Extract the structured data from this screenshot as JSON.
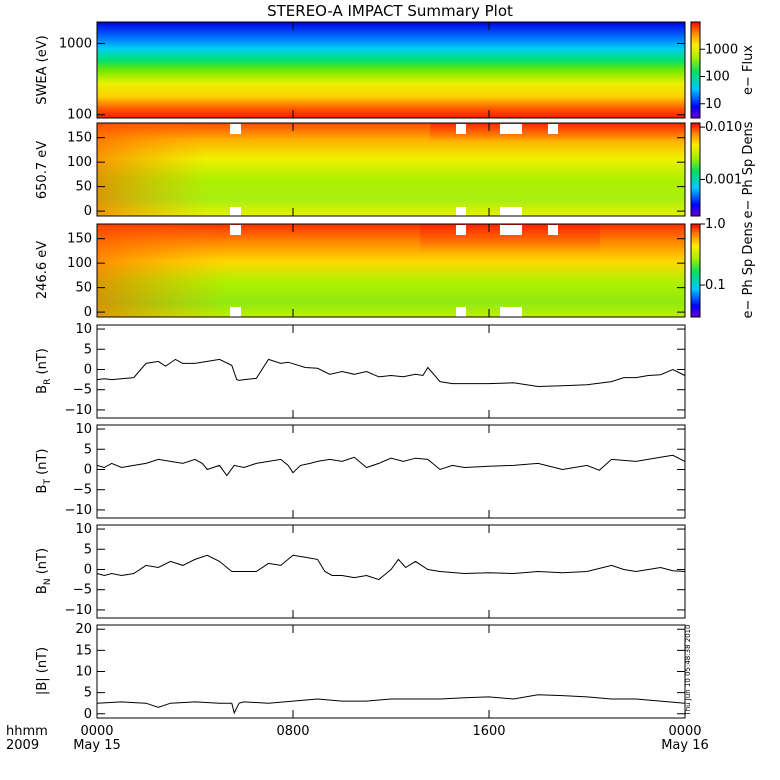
{
  "title": "STEREO-A IMPACT Summary Plot",
  "timestamp": "Thu Jun 10 05:48:38 2010",
  "footer": {
    "left_top": "hhmm",
    "left_bottom": "2009"
  },
  "xaxis": {
    "ticks": [
      {
        "hour": 0,
        "top": "0000",
        "bottom": "May 15"
      },
      {
        "hour": 8,
        "top": "0800",
        "bottom": ""
      },
      {
        "hour": 16,
        "top": "1600",
        "bottom": ""
      },
      {
        "hour": 24,
        "top": "0000",
        "bottom": "May 16"
      }
    ],
    "range": [
      0,
      24
    ]
  },
  "colors": {
    "trace": "#000000",
    "axis": "#000000",
    "background": "#ffffff"
  },
  "chart_data": [
    {
      "id": "swea",
      "type": "heatmap",
      "ylabel": "SWEA (eV)",
      "yscale": "log",
      "ylim": [
        90,
        2000
      ],
      "yticks": [
        100,
        1000
      ],
      "yticklabels": [
        "100",
        "1000"
      ],
      "colorbar": {
        "label": "e− Flux",
        "scale": "log",
        "range": [
          3,
          10000
        ],
        "ticks": [
          10,
          100,
          1000
        ],
        "ticklabels": [
          "10",
          "100",
          "1000"
        ]
      },
      "description_values": {
        "low_energy_flux": "high (red)",
        "high_energy_flux": "low (blue)"
      }
    },
    {
      "id": "pad650",
      "type": "heatmap",
      "ylabel": "650.7 eV",
      "ylim": [
        -10,
        180
      ],
      "yticks": [
        0,
        50,
        100,
        150
      ],
      "yticklabels": [
        "0",
        "50",
        "100",
        "150"
      ],
      "colorbar": {
        "label": "e− Ph Sp Dens",
        "scale": "log",
        "range": [
          0.0002,
          0.012
        ],
        "ticks": [
          0.001,
          0.01
        ],
        "ticklabels": [
          "0.001",
          "0.010"
        ]
      }
    },
    {
      "id": "pad246",
      "type": "heatmap",
      "ylabel": "246.6 eV",
      "ylim": [
        -10,
        180
      ],
      "yticks": [
        0,
        50,
        100,
        150
      ],
      "yticklabels": [
        "0",
        "50",
        "100",
        "150"
      ],
      "colorbar": {
        "label": "e− Ph Sp Dens",
        "scale": "log",
        "range": [
          0.03,
          1.0
        ],
        "ticks": [
          0.1,
          1.0
        ],
        "ticklabels": [
          "0.1",
          "1.0"
        ]
      }
    },
    {
      "id": "br",
      "type": "line",
      "ylabel_main": "B",
      "ylabel_sub": "R",
      "ylabel_unit": " (nT)",
      "ylim": [
        -12,
        11
      ],
      "yticks": [
        -10,
        -5,
        0,
        5,
        10
      ],
      "yticklabels": [
        "−10",
        "−5",
        "0",
        "5",
        "10"
      ],
      "x": [
        0,
        0.3,
        0.6,
        1,
        1.5,
        2,
        2.5,
        2.8,
        3.2,
        3.5,
        4,
        4.5,
        5,
        5.5,
        5.7,
        5.8,
        6,
        6.5,
        7,
        7.5,
        7.8,
        8.5,
        9,
        9.5,
        10,
        10.5,
        11,
        11.5,
        12,
        12.5,
        13,
        13.3,
        13.5,
        14,
        14.5,
        15,
        16,
        17,
        18,
        19,
        20,
        21,
        21.5,
        22,
        22.5,
        23,
        23.5,
        24
      ],
      "y": [
        -2.5,
        -2.3,
        -2.5,
        -2.3,
        -2,
        1.5,
        2,
        0.8,
        2.5,
        1.5,
        1.5,
        2,
        2.5,
        1,
        -2.5,
        -2.7,
        -2.5,
        -2.2,
        2.5,
        1.5,
        1.8,
        0.5,
        0.3,
        -1.2,
        -0.5,
        -1.2,
        -0.5,
        -1.8,
        -1.5,
        -1.8,
        -1.2,
        -1.5,
        0.5,
        -3,
        -3.5,
        -3.5,
        -3.5,
        -3.3,
        -4.2,
        -4,
        -3.8,
        -3,
        -2,
        -2,
        -1.5,
        -1.3,
        0,
        -1.5
      ]
    },
    {
      "id": "bt",
      "type": "line",
      "ylabel_main": "B",
      "ylabel_sub": "T",
      "ylabel_unit": " (nT)",
      "ylim": [
        -12,
        11
      ],
      "yticks": [
        -10,
        -5,
        0,
        5,
        10
      ],
      "yticklabels": [
        "−10",
        "−5",
        "0",
        "5",
        "10"
      ],
      "x": [
        0,
        0.3,
        0.6,
        1,
        1.5,
        2,
        2.5,
        3,
        3.5,
        4,
        4.3,
        4.5,
        5,
        5.3,
        5.6,
        6,
        6.5,
        7,
        7.5,
        7.8,
        8,
        8.3,
        8.7,
        9,
        9.5,
        10,
        10.5,
        11,
        11.5,
        12,
        12.5,
        13,
        13.5,
        14,
        14.5,
        15,
        16,
        17,
        18,
        19,
        20,
        20.5,
        21,
        22,
        23,
        23.5,
        24
      ],
      "y": [
        1,
        0.5,
        1.5,
        0.5,
        1,
        1.5,
        2.5,
        2,
        1.5,
        2.5,
        1.5,
        0,
        1,
        -1.5,
        1,
        0.5,
        1.5,
        2,
        2.5,
        1,
        -0.8,
        1,
        1.5,
        2,
        2.5,
        2,
        3,
        0.5,
        1.5,
        2.8,
        2,
        2.8,
        2.5,
        0,
        1,
        0.5,
        0.8,
        1,
        1.5,
        0,
        1,
        -0.2,
        2.5,
        2,
        3,
        3.5,
        2
      ]
    },
    {
      "id": "bn",
      "type": "line",
      "ylabel_main": "B",
      "ylabel_sub": "N",
      "ylabel_unit": " (nT)",
      "ylim": [
        -12,
        11
      ],
      "yticks": [
        -10,
        -5,
        0,
        5,
        10
      ],
      "yticklabels": [
        "−10",
        "−5",
        "0",
        "5",
        "10"
      ],
      "x": [
        0,
        0.3,
        0.6,
        1,
        1.5,
        2,
        2.5,
        3,
        3.5,
        4,
        4.5,
        5,
        5.5,
        6,
        6.5,
        7,
        7.5,
        8,
        8.5,
        9,
        9.3,
        9.6,
        10,
        10.5,
        11,
        11.5,
        12,
        12.3,
        12.6,
        13,
        13.5,
        14,
        15,
        16,
        17,
        18,
        19,
        20,
        21,
        21.5,
        22,
        22.5,
        23,
        23.5,
        24
      ],
      "y": [
        -1,
        -1.5,
        -1,
        -1.5,
        -1,
        1,
        0.5,
        2,
        1,
        2.5,
        3.5,
        2,
        -0.5,
        -0.5,
        -0.5,
        1.5,
        1,
        3.5,
        3,
        2.5,
        -0.5,
        -1.5,
        -1.5,
        -2,
        -1.5,
        -2.5,
        0,
        2.5,
        0.5,
        2,
        0,
        -0.5,
        -1,
        -0.8,
        -1,
        -0.5,
        -0.8,
        -0.5,
        1,
        0,
        -0.5,
        0,
        0.5,
        -0.3,
        -0.5
      ]
    },
    {
      "id": "bmag",
      "type": "line",
      "ylabel_main": "|B| (nT)",
      "ylim": [
        -1,
        21
      ],
      "yticks": [
        0,
        5,
        10,
        15,
        20
      ],
      "yticklabels": [
        "0",
        "5",
        "10",
        "15",
        "20"
      ],
      "x": [
        0,
        1,
        2,
        2.5,
        3,
        4,
        5,
        5.5,
        5.6,
        5.8,
        6,
        7,
        8,
        9,
        10,
        11,
        12,
        13,
        14,
        15,
        16,
        17,
        18,
        19,
        20,
        21,
        22,
        23,
        24
      ],
      "y": [
        2.5,
        2.8,
        2.5,
        1.5,
        2.5,
        2.8,
        2.5,
        2.5,
        0.2,
        2.5,
        2.8,
        2.5,
        3,
        3.5,
        3,
        3,
        3.5,
        3.5,
        3.5,
        3.8,
        4,
        3.5,
        4.5,
        4.3,
        4,
        3.5,
        3.5,
        3,
        2.5
      ]
    }
  ]
}
